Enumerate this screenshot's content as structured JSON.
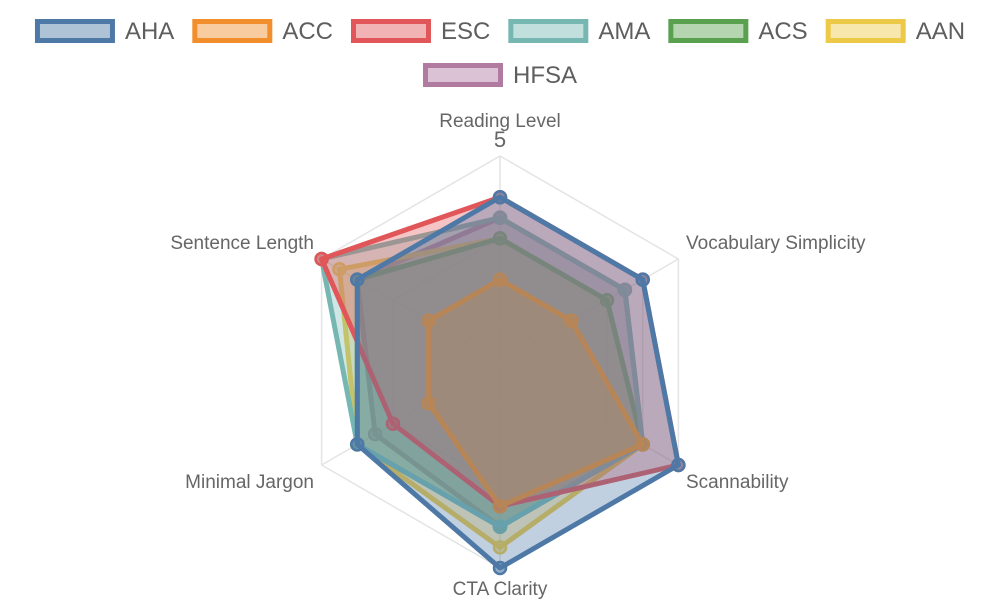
{
  "chart_data": {
    "type": "radar",
    "axes": [
      "Reading Level",
      "Vocabulary Simplicity",
      "Scannability",
      "CTA Clarity",
      "Minimal Jargon",
      "Sentence Length"
    ],
    "r_range": [
      0,
      5
    ],
    "tick_labels": [
      "5"
    ],
    "grid": true,
    "legend_position": "top",
    "series": [
      {
        "name": "AHA",
        "color": "#4e79a7",
        "values": [
          4.0,
          4.0,
          5.0,
          5.0,
          4.0,
          4.0
        ]
      },
      {
        "name": "ACC",
        "color": "#f28e2b",
        "values": [
          2.0,
          2.0,
          4.0,
          3.5,
          2.0,
          2.0
        ]
      },
      {
        "name": "ESC",
        "color": "#e15759",
        "values": [
          4.0,
          4.0,
          5.0,
          3.5,
          3.0,
          5.0
        ]
      },
      {
        "name": "AMA",
        "color": "#76b7b2",
        "values": [
          3.5,
          3.5,
          4.0,
          4.0,
          4.0,
          5.0
        ]
      },
      {
        "name": "ACS",
        "color": "#59a14f",
        "values": [
          3.0,
          3.0,
          4.0,
          4.0,
          4.0,
          4.0
        ]
      },
      {
        "name": "AAN",
        "color": "#edc948",
        "values": [
          3.0,
          3.0,
          4.0,
          4.5,
          4.0,
          4.5
        ]
      },
      {
        "name": "HFSA",
        "color": "#b07aa1",
        "values": [
          3.5,
          3.5,
          4.0,
          4.0,
          3.5,
          4.0
        ]
      }
    ]
  }
}
